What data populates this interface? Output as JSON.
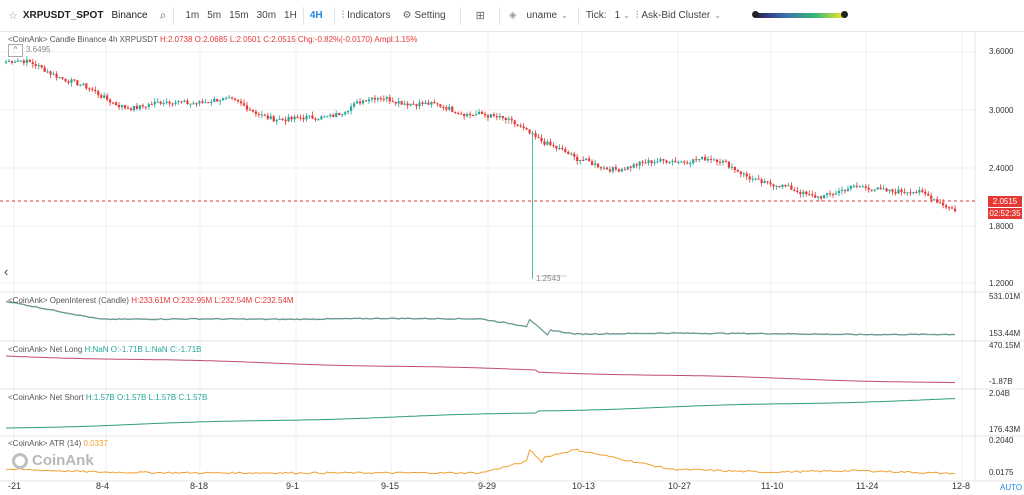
{
  "toolbar": {
    "symbol": "XRPUSDT_SPOT",
    "exchange": "Binance",
    "intervals": [
      "1m",
      "5m",
      "15m",
      "30m",
      "1H",
      "4H"
    ],
    "active_interval": "4H",
    "indicators_label": "Indicators",
    "setting_label": "Setting",
    "user_label": "uname",
    "tick_label": "Tick:",
    "tick_value": "1",
    "cluster_label": "Ask-Bid Cluster"
  },
  "colors": {
    "up": "#26a69a",
    "down": "#e53935",
    "accent": "#1e88e5",
    "atr": "#f0a030"
  },
  "main": {
    "legend_prefix": "<CoinAnk> Candle  Binance 4h XRPUSDT",
    "h": "H:2.0738",
    "o": "O:2.0685",
    "l": "L:2.0501",
    "c": "C:2.0515",
    "chg": "Chg:-0.82%(-0.0170)",
    "ampl": "Ampl:1.15%",
    "high_marker": "3.6495",
    "low_marker": "1.2543",
    "price_axis": [
      "3.6000",
      "3.0000",
      "2.4000",
      "1.8000",
      "1.2000"
    ],
    "last_price": "2.0515",
    "countdown": "02:52:35"
  },
  "oi": {
    "legend": "<CoinAnk> OpenInterest (Candle)",
    "h": "H:233.61M",
    "o": "O:232.95M",
    "l": "L:232.54M",
    "c": "C:232.54M",
    "axis": [
      "531.01M",
      "153.44M"
    ]
  },
  "netlong": {
    "legend": "<CoinAnk> Net Long",
    "h": "H:NaN",
    "o": "O:-1.71B",
    "l": "L:NaN",
    "c": "C:-1.71B",
    "axis": [
      "470.15M",
      "-1.87B"
    ]
  },
  "netshort": {
    "legend": "<CoinAnk> Net Short",
    "h": "H:1.57B",
    "o": "O:1.57B",
    "l": "L:1.57B",
    "c": "C:1.57B",
    "axis": [
      "2.04B",
      "176.43M"
    ]
  },
  "atr": {
    "legend": "<CoinAnk> ATR",
    "param": "(14)",
    "value": "0.0337",
    "axis": [
      "0.2040",
      "0.0175"
    ]
  },
  "x_labels": [
    "-21",
    "8-4",
    "8-18",
    "9-1",
    "9-15",
    "9-29",
    "10-13",
    "10-27",
    "11-10",
    "11-24",
    "12-8"
  ],
  "auto_label": "AUTO",
  "logo_text": "CoinAnk",
  "chart_data": {
    "type": "candlestick",
    "x": [
      "-21",
      "8-4",
      "8-18",
      "9-1",
      "9-15",
      "9-29",
      "10-13",
      "10-27",
      "11-10",
      "11-24",
      "12-8"
    ],
    "price_trend": [
      3.5,
      3.15,
      3.05,
      2.95,
      3.05,
      3.05,
      2.42,
      2.52,
      2.25,
      2.15,
      2.05
    ],
    "oi_trend": [
      520,
      330,
      335,
      330,
      340,
      335,
      175,
      185,
      180,
      170,
      172
    ],
    "atr_trend": [
      0.05,
      0.03,
      0.025,
      0.025,
      0.025,
      0.025,
      0.18,
      0.05,
      0.03,
      0.04,
      0.02
    ]
  }
}
